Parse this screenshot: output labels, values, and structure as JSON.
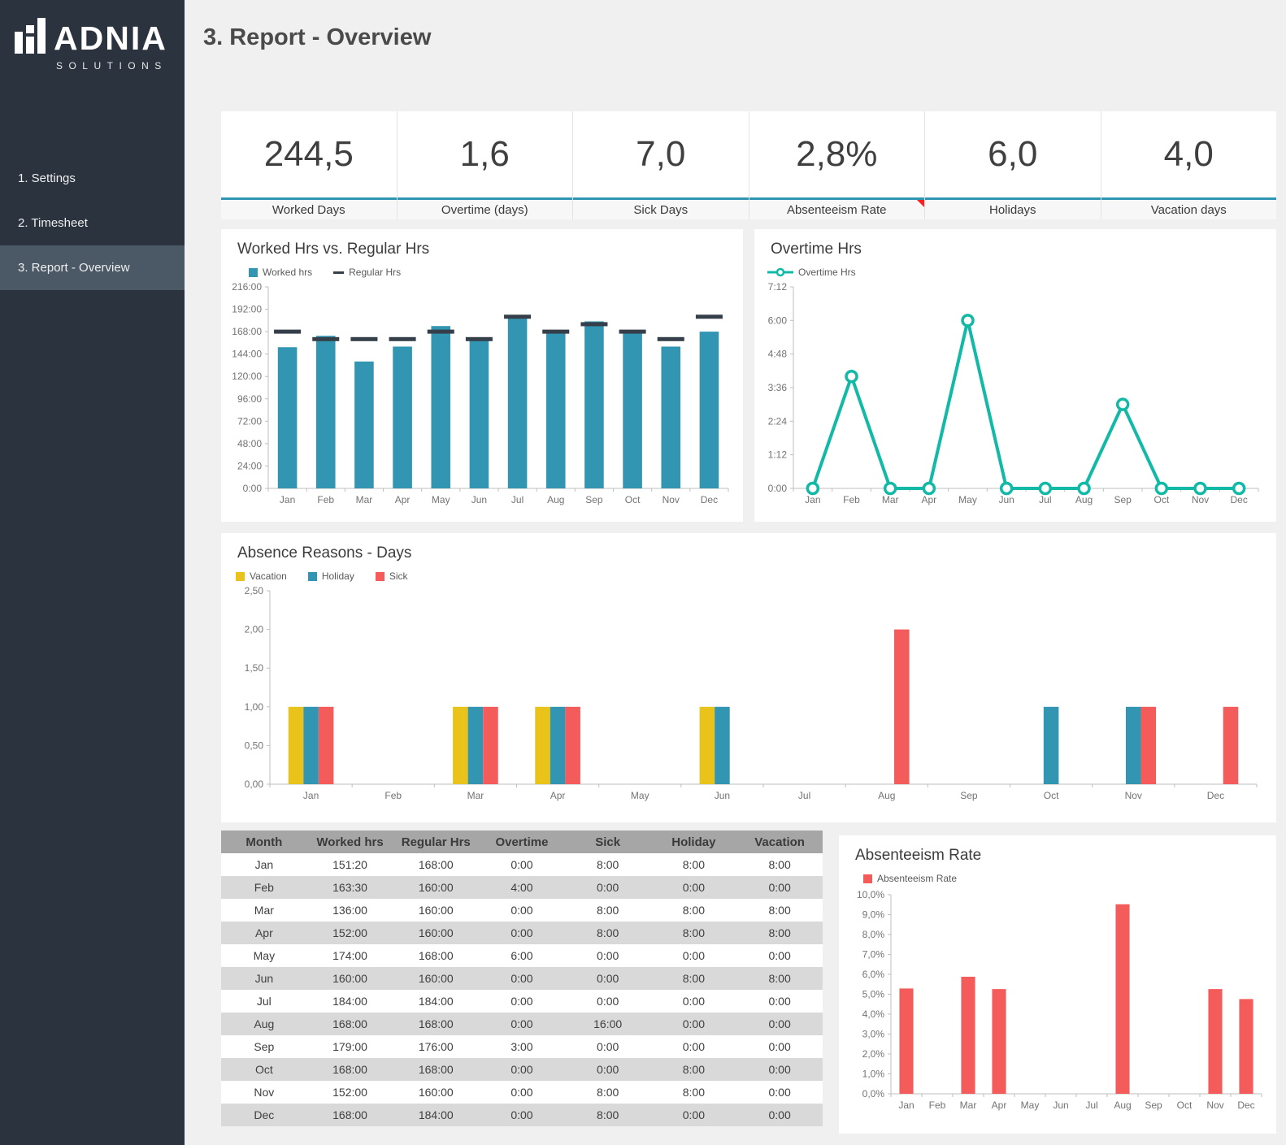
{
  "sidebar": {
    "logo": {
      "brand": "ADNIA",
      "sub": "SOLUTIONS",
      "icon": "bar-chart-logo"
    },
    "items": [
      {
        "label": "1. Settings",
        "active": false
      },
      {
        "label": "2. Timesheet",
        "active": false
      },
      {
        "label": "3. Report - Overview",
        "active": true
      }
    ]
  },
  "header": {
    "title": "3. Report - Overview"
  },
  "kpis": [
    {
      "value": "244,5",
      "label": "Worked Days",
      "flag": false
    },
    {
      "value": "1,6",
      "label": "Overtime (days)",
      "flag": false
    },
    {
      "value": "7,0",
      "label": "Sick Days",
      "flag": false
    },
    {
      "value": "2,8%",
      "label": "Absenteeism Rate",
      "flag": true
    },
    {
      "value": "6,0",
      "label": "Holidays",
      "flag": false
    },
    {
      "value": "4,0",
      "label": "Vacation days",
      "flag": false
    }
  ],
  "colors": {
    "sidebar_bg": "#2B333E",
    "sidebar_active_bg": "#4B5866",
    "accent_teal": "#3095B3",
    "dash_dark": "#353F49",
    "line_teal": "#12B9A7",
    "vacation_yellow": "#E9C319",
    "sick_red": "#F45B5B",
    "flag_red": "#FF1F1F",
    "table_header_bg": "#A6A6A6",
    "table_alt_row_bg": "#D9D9D9"
  },
  "chart_data": [
    {
      "id": "worked-vs-regular",
      "type": "bar",
      "title": "Worked Hrs vs. Regular Hrs",
      "categories": [
        "Jan",
        "Feb",
        "Mar",
        "Apr",
        "May",
        "Jun",
        "Jul",
        "Aug",
        "Sep",
        "Oct",
        "Nov",
        "Dec"
      ],
      "grid": false,
      "legend_position": "top-left",
      "y_axis": {
        "max": 216,
        "ticks": [
          {
            "value": 0,
            "label": "0:00"
          },
          {
            "value": 24,
            "label": "24:00"
          },
          {
            "value": 48,
            "label": "48:00"
          },
          {
            "value": 72,
            "label": "72:00"
          },
          {
            "value": 96,
            "label": "96:00"
          },
          {
            "value": 120,
            "label": "120:00"
          },
          {
            "value": 144,
            "label": "144:00"
          },
          {
            "value": 168,
            "label": "168:00"
          },
          {
            "value": 192,
            "label": "192:00"
          },
          {
            "value": 216,
            "label": "216:00"
          }
        ]
      },
      "series": [
        {
          "name": "Worked hrs",
          "type": "bar",
          "color": "#3295B2",
          "values": [
            151.33,
            163.5,
            136,
            152,
            174,
            160,
            184,
            168,
            179,
            168,
            152,
            168
          ],
          "value_labels": [
            "151:20",
            "163:30",
            "136:00",
            "152:00",
            "174:00",
            "160:00",
            "184:00",
            "168:00",
            "179:00",
            "168:00",
            "152:00",
            "168:00"
          ]
        },
        {
          "name": "Regular Hrs",
          "type": "dash",
          "color": "#353F49",
          "values": [
            168,
            160,
            160,
            160,
            168,
            160,
            184,
            168,
            176,
            168,
            160,
            184
          ],
          "value_labels": [
            "168:00",
            "160:00",
            "160:00",
            "160:00",
            "168:00",
            "160:00",
            "184:00",
            "168:00",
            "176:00",
            "168:00",
            "160:00",
            "184:00"
          ]
        }
      ]
    },
    {
      "id": "overtime-hrs",
      "type": "line",
      "title": "Overtime Hrs",
      "categories": [
        "Jan",
        "Feb",
        "Mar",
        "Apr",
        "May",
        "Jun",
        "Jul",
        "Aug",
        "Sep",
        "Oct",
        "Nov",
        "Dec"
      ],
      "grid": false,
      "legend_position": "top-left",
      "y_axis": {
        "max": 7.2,
        "ticks": [
          {
            "value": 0,
            "label": "0:00"
          },
          {
            "value": 1.2,
            "label": "1:12"
          },
          {
            "value": 2.4,
            "label": "2:24"
          },
          {
            "value": 3.6,
            "label": "3:36"
          },
          {
            "value": 4.8,
            "label": "4:48"
          },
          {
            "value": 6,
            "label": "6:00"
          },
          {
            "value": 7.2,
            "label": "7:12"
          }
        ]
      },
      "series": [
        {
          "name": "Overtime Hrs",
          "type": "line",
          "color": "#12B9A7",
          "values": [
            0,
            4,
            0,
            0,
            6,
            0,
            0,
            0,
            3,
            0,
            0,
            0
          ],
          "value_labels": [
            "0:00",
            "4:00",
            "0:00",
            "0:00",
            "6:00",
            "0:00",
            "0:00",
            "0:00",
            "3:00",
            "0:00",
            "0:00",
            "0:00"
          ]
        }
      ]
    },
    {
      "id": "absence-reasons-days",
      "type": "bar",
      "title": "Absence Reasons - Days",
      "categories": [
        "Jan",
        "Feb",
        "Mar",
        "Apr",
        "May",
        "Jun",
        "Jul",
        "Aug",
        "Sep",
        "Oct",
        "Nov",
        "Dec"
      ],
      "grid": false,
      "legend_position": "top-left",
      "y_axis": {
        "max": 2.5,
        "ticks": [
          {
            "value": 0,
            "label": "0,00"
          },
          {
            "value": 0.5,
            "label": "0,50"
          },
          {
            "value": 1,
            "label": "1,00"
          },
          {
            "value": 1.5,
            "label": "1,50"
          },
          {
            "value": 2,
            "label": "2,00"
          },
          {
            "value": 2.5,
            "label": "2,50"
          }
        ]
      },
      "series": [
        {
          "name": "Vacation",
          "type": "bar",
          "color": "#E9C319",
          "values": [
            1,
            0,
            1,
            1,
            0,
            1,
            0,
            0,
            0,
            0,
            0,
            0
          ]
        },
        {
          "name": "Holiday",
          "type": "bar",
          "color": "#3295B2",
          "values": [
            1,
            0,
            1,
            1,
            0,
            1,
            0,
            0,
            0,
            1,
            1,
            0
          ]
        },
        {
          "name": "Sick",
          "type": "bar",
          "color": "#F45B5B",
          "values": [
            1,
            0,
            1,
            1,
            0,
            0,
            0,
            2,
            0,
            0,
            1,
            1
          ]
        }
      ]
    },
    {
      "id": "absenteeism-rate",
      "type": "bar",
      "title": "Absenteeism Rate",
      "categories": [
        "Jan",
        "Feb",
        "Mar",
        "Apr",
        "May",
        "Jun",
        "Jul",
        "Aug",
        "Sep",
        "Oct",
        "Nov",
        "Dec"
      ],
      "grid": false,
      "legend_position": "top-left",
      "y_axis": {
        "max": 10,
        "ticks": [
          {
            "value": 0,
            "label": "0,0%"
          },
          {
            "value": 1,
            "label": "1,0%"
          },
          {
            "value": 2,
            "label": "2,0%"
          },
          {
            "value": 3,
            "label": "3,0%"
          },
          {
            "value": 4,
            "label": "4,0%"
          },
          {
            "value": 5,
            "label": "5,0%"
          },
          {
            "value": 6,
            "label": "6,0%"
          },
          {
            "value": 7,
            "label": "7,0%"
          },
          {
            "value": 8,
            "label": "8,0%"
          },
          {
            "value": 9,
            "label": "9,0%"
          },
          {
            "value": 10,
            "label": "10,0%"
          }
        ]
      },
      "series": [
        {
          "name": "Absenteeism Rate",
          "type": "bar",
          "color": "#F45B5B",
          "values": [
            5.29,
            0,
            5.88,
            5.26,
            0,
            0,
            0,
            9.52,
            0,
            0,
            5.26,
            4.76
          ]
        }
      ]
    }
  ],
  "table": {
    "columns": [
      "Month",
      "Worked hrs",
      "Regular Hrs",
      "Overtime",
      "Sick",
      "Holiday",
      "Vacation"
    ],
    "rows": [
      [
        "Jan",
        "151:20",
        "168:00",
        "0:00",
        "8:00",
        "8:00",
        "8:00"
      ],
      [
        "Feb",
        "163:30",
        "160:00",
        "4:00",
        "0:00",
        "0:00",
        "0:00"
      ],
      [
        "Mar",
        "136:00",
        "160:00",
        "0:00",
        "8:00",
        "8:00",
        "8:00"
      ],
      [
        "Apr",
        "152:00",
        "160:00",
        "0:00",
        "8:00",
        "8:00",
        "8:00"
      ],
      [
        "May",
        "174:00",
        "168:00",
        "6:00",
        "0:00",
        "0:00",
        "0:00"
      ],
      [
        "Jun",
        "160:00",
        "160:00",
        "0:00",
        "0:00",
        "8:00",
        "8:00"
      ],
      [
        "Jul",
        "184:00",
        "184:00",
        "0:00",
        "0:00",
        "0:00",
        "0:00"
      ],
      [
        "Aug",
        "168:00",
        "168:00",
        "0:00",
        "16:00",
        "0:00",
        "0:00"
      ],
      [
        "Sep",
        "179:00",
        "176:00",
        "3:00",
        "0:00",
        "0:00",
        "0:00"
      ],
      [
        "Oct",
        "168:00",
        "168:00",
        "0:00",
        "0:00",
        "8:00",
        "0:00"
      ],
      [
        "Nov",
        "152:00",
        "160:00",
        "0:00",
        "8:00",
        "8:00",
        "0:00"
      ],
      [
        "Dec",
        "168:00",
        "184:00",
        "0:00",
        "8:00",
        "0:00",
        "0:00"
      ]
    ]
  }
}
